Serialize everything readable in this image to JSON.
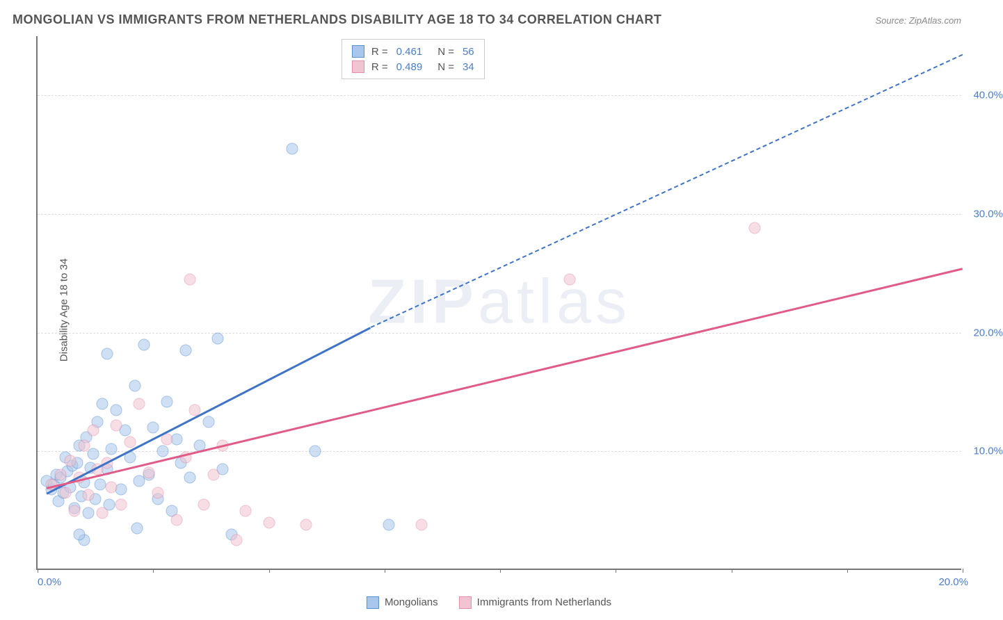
{
  "title": "MONGOLIAN VS IMMIGRANTS FROM NETHERLANDS DISABILITY AGE 18 TO 34 CORRELATION CHART",
  "source": "Source: ZipAtlas.com",
  "ylabel": "Disability Age 18 to 34",
  "watermark": "ZIPatlas",
  "chart": {
    "type": "scatter",
    "background_color": "#ffffff",
    "grid_color": "#dddddd",
    "axis_color": "#777777",
    "tick_color": "#4a7ec9",
    "label_color": "#555555",
    "title_fontsize": 18,
    "tick_fontsize": 15,
    "label_fontsize": 15,
    "xlim": [
      0,
      20
    ],
    "ylim": [
      0,
      45
    ],
    "xticks": [
      0,
      20
    ],
    "xtick_labels": [
      "0.0%",
      "20.0%"
    ],
    "yticks": [
      10,
      20,
      30,
      40
    ],
    "ytick_labels": [
      "10.0%",
      "20.0%",
      "30.0%",
      "40.0%"
    ],
    "xtick_marks_at": [
      0,
      2.5,
      5,
      7.5,
      10,
      12.5,
      15,
      17.5,
      20
    ],
    "marker_size": 17,
    "marker_opacity": 0.55,
    "line_width": 2.5
  },
  "series": [
    {
      "name": "Mongolians",
      "color_fill": "#a9c7ec",
      "color_stroke": "#5a8fd1",
      "R": "0.461",
      "N": "56",
      "regression": {
        "x0": 0.2,
        "y0": 6.5,
        "x1": 7.2,
        "y1": 20.5,
        "x2": 20,
        "y2": 43.5,
        "dashed_after": 7.2,
        "color": "#3e73c6"
      },
      "points": [
        [
          0.2,
          7.5
        ],
        [
          0.3,
          6.8
        ],
        [
          0.35,
          7.2
        ],
        [
          0.4,
          8.0
        ],
        [
          0.45,
          5.8
        ],
        [
          0.5,
          7.8
        ],
        [
          0.55,
          6.5
        ],
        [
          0.6,
          9.5
        ],
        [
          0.65,
          8.3
        ],
        [
          0.7,
          7.0
        ],
        [
          0.75,
          8.8
        ],
        [
          0.8,
          5.2
        ],
        [
          0.85,
          9.0
        ],
        [
          0.9,
          10.5
        ],
        [
          0.95,
          6.2
        ],
        [
          1.0,
          7.4
        ],
        [
          1.05,
          11.2
        ],
        [
          1.1,
          4.8
        ],
        [
          1.15,
          8.6
        ],
        [
          1.2,
          9.8
        ],
        [
          1.25,
          6.0
        ],
        [
          1.3,
          12.5
        ],
        [
          1.35,
          7.2
        ],
        [
          1.4,
          14.0
        ],
        [
          1.5,
          8.5
        ],
        [
          1.55,
          5.5
        ],
        [
          1.6,
          10.2
        ],
        [
          1.7,
          13.5
        ],
        [
          1.8,
          6.8
        ],
        [
          1.9,
          11.8
        ],
        [
          2.0,
          9.5
        ],
        [
          2.1,
          15.5
        ],
        [
          2.15,
          3.5
        ],
        [
          2.2,
          7.5
        ],
        [
          2.3,
          19.0
        ],
        [
          2.4,
          8.0
        ],
        [
          2.5,
          12.0
        ],
        [
          2.6,
          6.0
        ],
        [
          2.7,
          10.0
        ],
        [
          2.8,
          14.2
        ],
        [
          2.9,
          5.0
        ],
        [
          3.0,
          11.0
        ],
        [
          3.1,
          9.0
        ],
        [
          3.2,
          18.5
        ],
        [
          3.3,
          7.8
        ],
        [
          3.5,
          10.5
        ],
        [
          3.7,
          12.5
        ],
        [
          3.9,
          19.5
        ],
        [
          4.0,
          8.5
        ],
        [
          4.2,
          3.0
        ],
        [
          1.5,
          18.2
        ],
        [
          1.0,
          2.5
        ],
        [
          7.6,
          3.8
        ],
        [
          5.5,
          35.5
        ],
        [
          0.9,
          3.0
        ],
        [
          6.0,
          10.0
        ]
      ]
    },
    {
      "name": "Immigrants from Netherlands",
      "color_fill": "#f1c4d1",
      "color_stroke": "#e38faa",
      "R": "0.489",
      "N": "34",
      "regression": {
        "x0": 0.2,
        "y0": 7.0,
        "x1": 20,
        "y1": 25.5,
        "dashed_after": null,
        "color": "#e15b87"
      },
      "points": [
        [
          0.3,
          7.2
        ],
        [
          0.5,
          8.0
        ],
        [
          0.6,
          6.5
        ],
        [
          0.7,
          9.2
        ],
        [
          0.8,
          5.0
        ],
        [
          0.9,
          7.8
        ],
        [
          1.0,
          10.5
        ],
        [
          1.1,
          6.3
        ],
        [
          1.2,
          11.8
        ],
        [
          1.3,
          8.5
        ],
        [
          1.4,
          4.8
        ],
        [
          1.5,
          9.0
        ],
        [
          1.6,
          7.0
        ],
        [
          1.7,
          12.2
        ],
        [
          1.8,
          5.5
        ],
        [
          2.0,
          10.8
        ],
        [
          2.2,
          14.0
        ],
        [
          2.4,
          8.2
        ],
        [
          2.6,
          6.5
        ],
        [
          2.8,
          11.0
        ],
        [
          3.0,
          4.2
        ],
        [
          3.2,
          9.5
        ],
        [
          3.4,
          13.5
        ],
        [
          3.6,
          5.5
        ],
        [
          3.8,
          8.0
        ],
        [
          4.0,
          10.5
        ],
        [
          4.3,
          2.5
        ],
        [
          4.5,
          5.0
        ],
        [
          5.0,
          4.0
        ],
        [
          5.8,
          3.8
        ],
        [
          3.3,
          24.5
        ],
        [
          8.3,
          3.8
        ],
        [
          11.5,
          24.5
        ],
        [
          15.5,
          28.8
        ]
      ]
    }
  ],
  "legend_bottom": [
    {
      "label": "Mongolians",
      "fill": "#a9c7ec",
      "stroke": "#5a8fd1"
    },
    {
      "label": "Immigrants from Netherlands",
      "fill": "#f1c4d1",
      "stroke": "#e38faa"
    }
  ],
  "legend_top": {
    "rows": [
      {
        "fill": "#a9c7ec",
        "stroke": "#5a8fd1",
        "R_label": "R =",
        "R": "0.461",
        "N_label": "N =",
        "N": "56"
      },
      {
        "fill": "#f1c4d1",
        "stroke": "#e38faa",
        "R_label": "R =",
        "R": "0.489",
        "N_label": "N =",
        "N": "34"
      }
    ]
  }
}
